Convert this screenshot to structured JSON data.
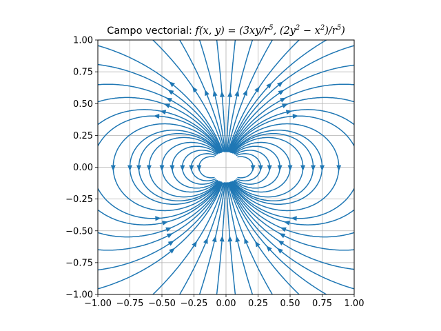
{
  "chart_data": {
    "type": "streamplot",
    "title": "Campo vectorial: $f(x,y) = (3xy/r^5, (2y^2 - x^2)/r^5)$",
    "title_parts": {
      "prefix": "Campo vectorial: ",
      "f": "f",
      "args": "(x, y)",
      "eq": " = (3xy/r",
      "sup1": "5",
      "mid": ", (2y",
      "sup2": "2",
      "minus": " − x",
      "sup3": "2",
      "close": ")/r",
      "sup4": "5",
      "end": ")"
    },
    "xlabel": "",
    "ylabel": "",
    "xlim": [
      -1.0,
      1.0
    ],
    "ylim": [
      -1.0,
      1.0
    ],
    "xticks": [
      -1.0,
      -0.75,
      -0.5,
      -0.25,
      0.0,
      0.25,
      0.5,
      0.75,
      1.0
    ],
    "yticks": [
      -1.0,
      -0.75,
      -0.5,
      -0.25,
      0.0,
      0.25,
      0.5,
      0.75,
      1.0
    ],
    "xtick_labels": [
      "−1.00",
      "−0.75",
      "−0.50",
      "−0.25",
      "0.00",
      "0.25",
      "0.50",
      "0.75",
      "1.00"
    ],
    "ytick_labels": [
      "−1.00",
      "−0.75",
      "−0.50",
      "−0.25",
      "0.00",
      "0.25",
      "0.50",
      "0.75",
      "1.00"
    ],
    "grid": true,
    "field": {
      "u": "3*x*y/r^5",
      "v": "(2*y^2 - x^2)/r^5"
    },
    "line_color": "#1f77b4",
    "grid_color": "#b0b0b0",
    "seeds": [
      [
        -0.98,
        0.95
      ],
      [
        -0.95,
        0.8
      ],
      [
        -0.98,
        0.65
      ],
      [
        -0.98,
        0.52
      ],
      [
        -0.98,
        0.35
      ],
      [
        -0.98,
        0.2
      ],
      [
        0.98,
        0.95
      ],
      [
        0.98,
        0.8
      ],
      [
        0.98,
        0.65
      ],
      [
        0.98,
        0.52
      ],
      [
        0.98,
        0.35
      ],
      [
        0.98,
        0.2
      ],
      [
        -0.98,
        -0.95
      ],
      [
        -0.95,
        -0.8
      ],
      [
        -0.98,
        -0.65
      ],
      [
        -0.98,
        -0.52
      ],
      [
        -0.98,
        -0.35
      ],
      [
        -0.98,
        -0.2
      ],
      [
        0.98,
        -0.95
      ],
      [
        0.98,
        -0.8
      ],
      [
        0.98,
        -0.65
      ],
      [
        0.98,
        -0.52
      ],
      [
        0.98,
        -0.35
      ],
      [
        0.98,
        -0.2
      ],
      [
        -0.55,
        0.98
      ],
      [
        -0.35,
        0.98
      ],
      [
        -0.2,
        0.98
      ],
      [
        -0.07,
        0.98
      ],
      [
        0.07,
        0.98
      ],
      [
        0.2,
        0.98
      ],
      [
        0.35,
        0.98
      ],
      [
        0.55,
        0.98
      ],
      [
        0.75,
        0.98
      ],
      [
        -0.55,
        -0.98
      ],
      [
        -0.35,
        -0.98
      ],
      [
        -0.2,
        -0.98
      ],
      [
        -0.07,
        -0.98
      ],
      [
        0.07,
        -0.98
      ],
      [
        0.2,
        -0.98
      ],
      [
        0.35,
        -0.98
      ],
      [
        0.55,
        -0.98
      ],
      [
        0.75,
        -0.98
      ],
      [
        -0.75,
        0.0
      ],
      [
        -0.68,
        0.0
      ],
      [
        -0.6,
        0.0
      ],
      [
        -0.5,
        0.0
      ],
      [
        -0.42,
        0.0
      ],
      [
        -0.34,
        0.0
      ],
      [
        -0.27,
        0.0
      ],
      [
        -0.21,
        0.0
      ],
      [
        -0.88,
        0.0
      ],
      [
        0.75,
        0.0
      ],
      [
        0.68,
        0.0
      ],
      [
        0.6,
        0.0
      ],
      [
        0.5,
        0.0
      ],
      [
        0.42,
        0.0
      ],
      [
        0.34,
        0.0
      ],
      [
        0.27,
        0.0
      ],
      [
        0.21,
        0.0
      ],
      [
        0.88,
        0.0
      ]
    ]
  }
}
